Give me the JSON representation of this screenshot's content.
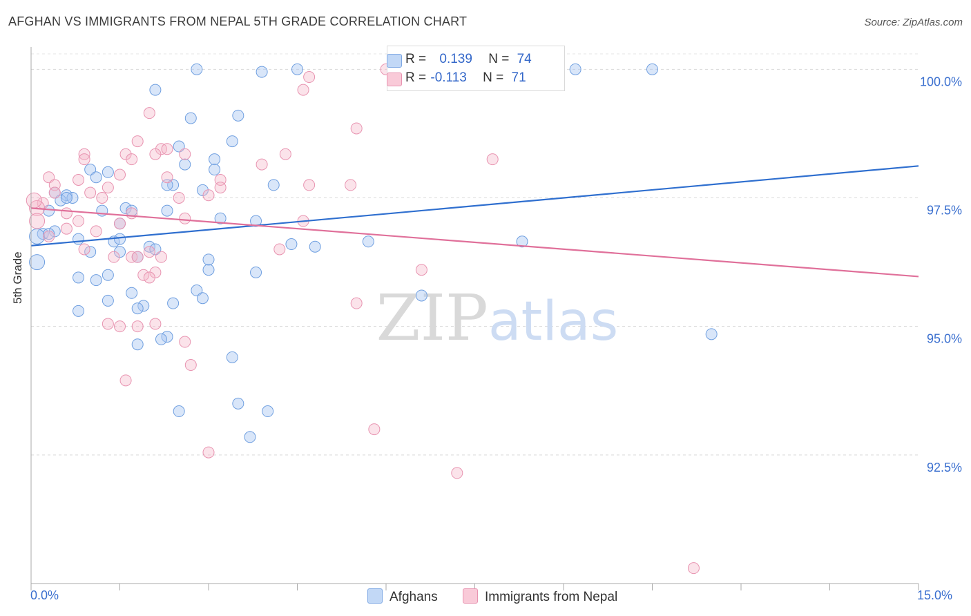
{
  "header": {
    "title": "AFGHAN VS IMMIGRANTS FROM NEPAL 5TH GRADE CORRELATION CHART",
    "source": "Source: ZipAtlas.com"
  },
  "legend": {
    "series1": {
      "r_label": "R = ",
      "r_value": "0.139",
      "n_label": "N = ",
      "n_value": "74"
    },
    "series2": {
      "r_label": "R = ",
      "r_value": "-0.113",
      "n_label": "N = ",
      "n_value": "71"
    }
  },
  "colors": {
    "blue_fill": "#aac8f2",
    "blue_line": "#2f6fcf",
    "pink_fill": "#f6b8cb",
    "pink_line": "#e0709a",
    "tick_label": "#3a6fcf"
  },
  "chart_data": {
    "type": "scatter",
    "title": "AFGHAN VS IMMIGRANTS FROM NEPAL 5TH GRADE CORRELATION CHART",
    "xlabel": "",
    "ylabel": "5th Grade",
    "xlim": [
      0,
      15
    ],
    "ylim": [
      90.0,
      100.3
    ],
    "x_tick_labels": [
      "0.0%",
      "15.0%"
    ],
    "y_ticks": [
      100.0,
      97.5,
      95.0,
      92.5
    ],
    "y_tick_labels": [
      "100.0%",
      "97.5%",
      "95.0%",
      "92.5%"
    ],
    "watermark": "ZIPatlas",
    "grid": true,
    "legend_position": "top-center",
    "series": [
      {
        "name": "Afghans",
        "color": "#aac8f2",
        "trend": {
          "x": [
            0,
            15
          ],
          "y": [
            96.57,
            98.12
          ]
        },
        "points": [
          [
            2.8,
            100.0
          ],
          [
            3.9,
            99.95
          ],
          [
            4.5,
            100.0
          ],
          [
            9.2,
            100.0
          ],
          [
            10.5,
            100.0
          ],
          [
            2.1,
            99.6
          ],
          [
            2.7,
            99.05
          ],
          [
            3.5,
            99.1
          ],
          [
            3.4,
            98.6
          ],
          [
            2.5,
            98.5
          ],
          [
            2.6,
            98.15
          ],
          [
            3.1,
            98.25
          ],
          [
            3.1,
            98.05
          ],
          [
            1.0,
            98.05
          ],
          [
            1.3,
            98.0
          ],
          [
            4.1,
            97.75
          ],
          [
            2.4,
            97.75
          ],
          [
            2.3,
            97.75
          ],
          [
            0.4,
            97.6
          ],
          [
            0.6,
            97.55
          ],
          [
            0.7,
            97.5
          ],
          [
            0.5,
            97.45
          ],
          [
            1.2,
            97.25
          ],
          [
            1.6,
            97.3
          ],
          [
            1.7,
            97.25
          ],
          [
            2.3,
            97.25
          ],
          [
            0.3,
            97.25
          ],
          [
            3.2,
            97.1
          ],
          [
            3.8,
            97.05
          ],
          [
            1.5,
            97.0
          ],
          [
            0.4,
            96.85
          ],
          [
            0.2,
            96.8
          ],
          [
            0.1,
            96.75
          ],
          [
            0.8,
            96.7
          ],
          [
            1.4,
            96.65
          ],
          [
            4.4,
            96.6
          ],
          [
            4.8,
            96.55
          ],
          [
            5.7,
            96.65
          ],
          [
            8.3,
            96.65
          ],
          [
            2.0,
            96.55
          ],
          [
            2.1,
            96.5
          ],
          [
            1.5,
            96.45
          ],
          [
            0.1,
            96.25
          ],
          [
            1.0,
            96.45
          ],
          [
            1.8,
            96.35
          ],
          [
            1.3,
            96.0
          ],
          [
            0.8,
            95.95
          ],
          [
            1.1,
            95.9
          ],
          [
            3.0,
            96.1
          ],
          [
            3.8,
            96.05
          ],
          [
            1.7,
            95.65
          ],
          [
            2.8,
            95.7
          ],
          [
            2.9,
            95.55
          ],
          [
            1.3,
            95.5
          ],
          [
            6.6,
            95.6
          ],
          [
            1.9,
            95.4
          ],
          [
            1.8,
            95.35
          ],
          [
            2.4,
            95.45
          ],
          [
            0.8,
            95.3
          ],
          [
            2.3,
            94.8
          ],
          [
            2.2,
            94.75
          ],
          [
            1.8,
            94.65
          ],
          [
            3.4,
            94.4
          ],
          [
            11.5,
            94.85
          ],
          [
            3.5,
            93.5
          ],
          [
            2.5,
            93.35
          ],
          [
            4.0,
            93.35
          ],
          [
            3.7,
            92.85
          ],
          [
            1.5,
            96.7
          ],
          [
            0.3,
            96.8
          ],
          [
            2.9,
            97.65
          ],
          [
            1.1,
            97.9
          ],
          [
            0.6,
            97.5
          ],
          [
            3.0,
            96.3
          ]
        ]
      },
      {
        "name": "Immigrants from Nepal",
        "color": "#f6b8cb",
        "trend": {
          "x": [
            0,
            15
          ],
          "y": [
            97.3,
            95.97
          ]
        },
        "points": [
          [
            6.0,
            100.0
          ],
          [
            6.4,
            100.0
          ],
          [
            7.2,
            100.0
          ],
          [
            4.7,
            99.85
          ],
          [
            4.6,
            99.6
          ],
          [
            6.5,
            99.7
          ],
          [
            2.0,
            99.15
          ],
          [
            5.5,
            98.85
          ],
          [
            1.8,
            98.6
          ],
          [
            2.2,
            98.45
          ],
          [
            2.3,
            98.45
          ],
          [
            2.1,
            98.35
          ],
          [
            1.6,
            98.35
          ],
          [
            4.3,
            98.35
          ],
          [
            2.6,
            98.35
          ],
          [
            1.7,
            98.25
          ],
          [
            0.9,
            98.35
          ],
          [
            0.9,
            98.25
          ],
          [
            3.9,
            98.15
          ],
          [
            7.8,
            98.25
          ],
          [
            1.5,
            97.95
          ],
          [
            0.3,
            97.9
          ],
          [
            0.8,
            97.85
          ],
          [
            2.3,
            97.9
          ],
          [
            3.2,
            97.85
          ],
          [
            4.7,
            97.75
          ],
          [
            5.4,
            97.75
          ],
          [
            0.4,
            97.75
          ],
          [
            1.3,
            97.7
          ],
          [
            3.2,
            97.7
          ],
          [
            0.4,
            97.6
          ],
          [
            1.0,
            97.6
          ],
          [
            2.5,
            97.5
          ],
          [
            3.0,
            97.55
          ],
          [
            1.2,
            97.5
          ],
          [
            0.2,
            97.4
          ],
          [
            0.1,
            97.3
          ],
          [
            0.6,
            97.2
          ],
          [
            1.7,
            97.2
          ],
          [
            0.1,
            97.05
          ],
          [
            0.8,
            97.05
          ],
          [
            1.5,
            97.0
          ],
          [
            2.6,
            97.1
          ],
          [
            4.6,
            97.05
          ],
          [
            0.6,
            96.9
          ],
          [
            1.1,
            96.85
          ],
          [
            0.3,
            96.75
          ],
          [
            0.9,
            96.5
          ],
          [
            2.0,
            96.45
          ],
          [
            4.2,
            96.5
          ],
          [
            1.4,
            96.35
          ],
          [
            1.7,
            96.35
          ],
          [
            1.8,
            96.35
          ],
          [
            2.2,
            96.35
          ],
          [
            2.1,
            96.05
          ],
          [
            1.9,
            96.0
          ],
          [
            2.0,
            95.95
          ],
          [
            6.6,
            96.1
          ],
          [
            5.5,
            95.45
          ],
          [
            1.3,
            95.05
          ],
          [
            1.8,
            95.0
          ],
          [
            1.5,
            95.0
          ],
          [
            2.1,
            95.05
          ],
          [
            2.6,
            94.7
          ],
          [
            2.7,
            94.25
          ],
          [
            1.6,
            93.95
          ],
          [
            5.8,
            93.0
          ],
          [
            3.0,
            92.55
          ],
          [
            7.2,
            92.15
          ],
          [
            11.2,
            90.3
          ],
          [
            0.05,
            97.45
          ]
        ]
      }
    ]
  },
  "bottom_legend": {
    "item1": "Afghans",
    "item2": "Immigrants from Nepal"
  }
}
